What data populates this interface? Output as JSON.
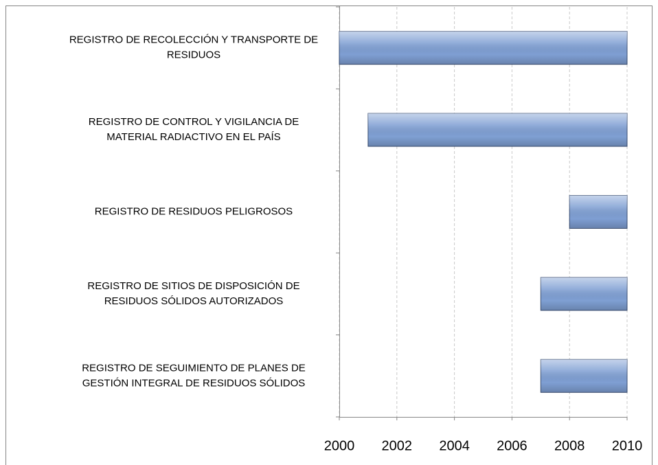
{
  "chart_data": {
    "type": "floating-bar",
    "categories": [
      [
        "REGISTRO DE RECOLECCIÓN Y TRANSPORTE DE",
        "RESIDUOS"
      ],
      [
        "REGISTRO DE CONTROL Y VIGILANCIA DE",
        "MATERIAL RADIACTIVO EN EL PAÍS"
      ],
      [
        "REGISTRO DE RESIDUOS PELIGROSOS"
      ],
      [
        "REGISTRO DE SITIOS DE DISPOSICIÓN DE",
        "RESIDUOS SÓLIDOS AUTORIZADOS"
      ],
      [
        "REGISTRO DE SEGUIMIENTO DE PLANES DE",
        "GESTIÓN INTEGRAL DE RESIDUOS SÓLIDOS"
      ]
    ],
    "start": [
      2000,
      2001,
      2008,
      2007,
      2007
    ],
    "end": [
      2010,
      2010,
      2010,
      2010,
      2010
    ],
    "color": "#7f9fd3",
    "xlim": [
      2000,
      2010
    ],
    "xticks": [
      2000,
      2002,
      2004,
      2006,
      2008,
      2010
    ],
    "grid": true
  }
}
